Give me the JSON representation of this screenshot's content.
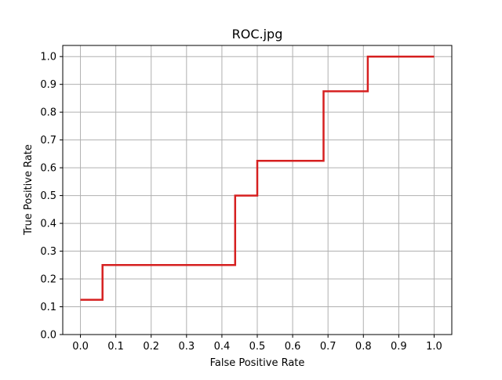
{
  "chart_data": {
    "type": "line",
    "title": "ROC.jpg",
    "xlabel": "False Positive Rate",
    "ylabel": "True Positive Rate",
    "xlim": [
      -0.05,
      1.05
    ],
    "ylim": [
      0.0,
      1.04
    ],
    "xticks": [
      0.0,
      0.1,
      0.2,
      0.3,
      0.4,
      0.5,
      0.6,
      0.7,
      0.8,
      0.9,
      1.0
    ],
    "xtick_labels": [
      "0.0",
      "0.1",
      "0.2",
      "0.3",
      "0.4",
      "0.5",
      "0.6",
      "0.7",
      "0.8",
      "0.9",
      "1.0"
    ],
    "yticks": [
      0.0,
      0.1,
      0.2,
      0.3,
      0.4,
      0.5,
      0.6,
      0.7,
      0.8,
      0.9,
      1.0
    ],
    "ytick_labels": [
      "0.0",
      "0.1",
      "0.2",
      "0.3",
      "0.4",
      "0.5",
      "0.6",
      "0.7",
      "0.8",
      "0.9",
      "1.0"
    ],
    "grid": true,
    "series": [
      {
        "color": "#d62020",
        "x": [
          0.0,
          0.0625,
          0.0625,
          0.4375,
          0.4375,
          0.5,
          0.5,
          0.6875,
          0.6875,
          0.8125,
          0.8125,
          1.0
        ],
        "y": [
          0.125,
          0.125,
          0.25,
          0.25,
          0.5,
          0.5,
          0.625,
          0.625,
          0.875,
          0.875,
          1.0,
          1.0
        ]
      }
    ]
  }
}
